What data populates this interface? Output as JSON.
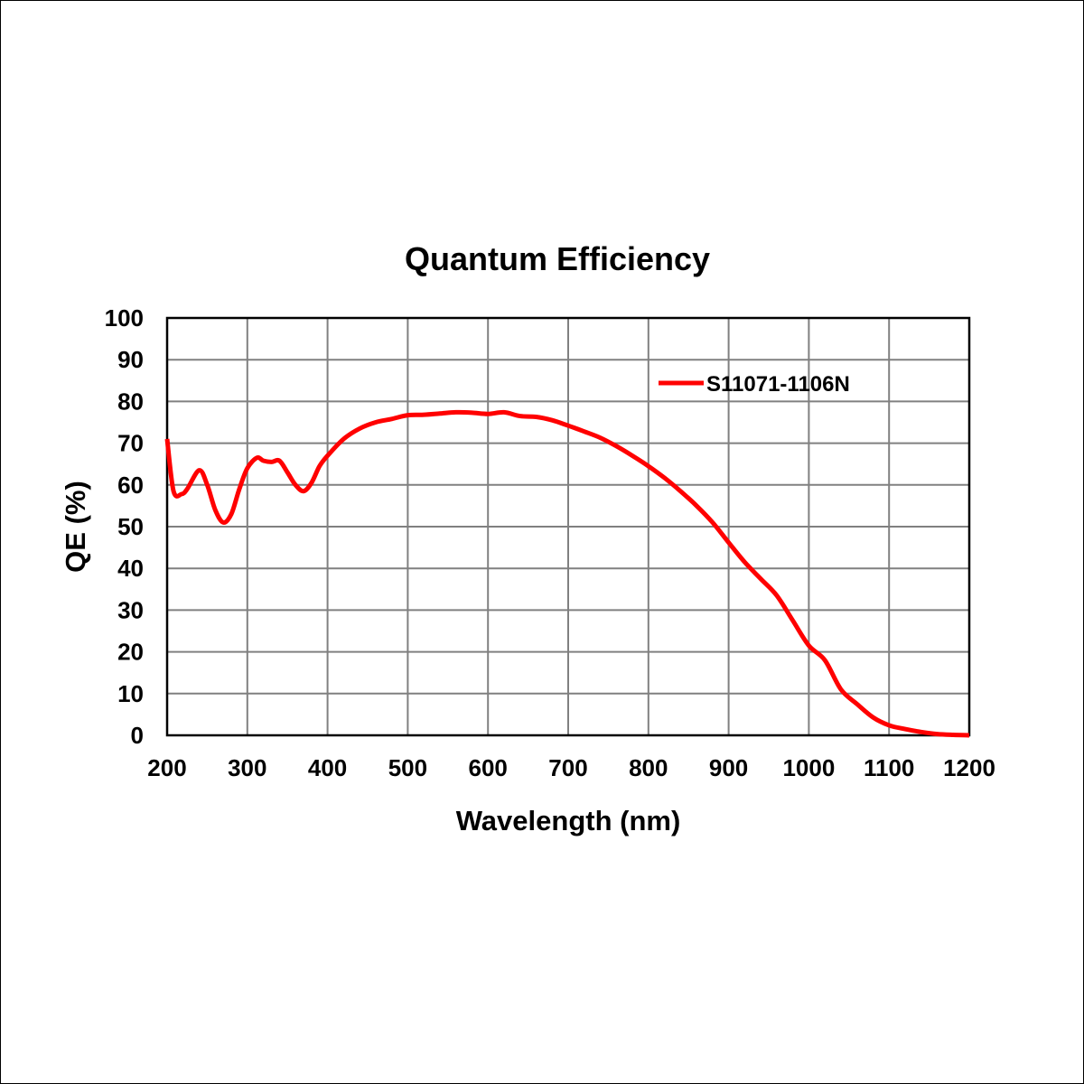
{
  "chart_data": {
    "type": "line",
    "title": "Quantum Efficiency",
    "xlabel": "Wavelength (nm)",
    "ylabel": "QE (%)",
    "xlim": [
      200,
      1200
    ],
    "ylim": [
      0,
      100
    ],
    "xticks": [
      200,
      300,
      400,
      500,
      600,
      700,
      800,
      900,
      1000,
      1100,
      1200
    ],
    "yticks": [
      0,
      10,
      20,
      30,
      40,
      50,
      60,
      70,
      80,
      90,
      100
    ],
    "grid": true,
    "legend_position": "top-right",
    "series": [
      {
        "name": "S11071-1106N",
        "color": "#ff0000",
        "x": [
          200,
          208,
          218,
          225,
          240,
          250,
          260,
          270,
          280,
          290,
          300,
          312,
          320,
          330,
          340,
          350,
          360,
          370,
          380,
          390,
          400,
          420,
          440,
          460,
          480,
          500,
          520,
          540,
          560,
          580,
          600,
          620,
          640,
          660,
          680,
          700,
          720,
          740,
          760,
          780,
          800,
          820,
          840,
          860,
          880,
          900,
          920,
          940,
          960,
          980,
          1000,
          1020,
          1040,
          1060,
          1080,
          1100,
          1120,
          1140,
          1160,
          1180,
          1200
        ],
        "y": [
          71,
          58.5,
          57.8,
          59,
          63.5,
          60,
          54,
          51,
          53,
          59,
          64,
          66.5,
          65.8,
          65.5,
          65.8,
          63,
          60,
          58.5,
          60.5,
          64.5,
          67,
          71,
          73.5,
          75,
          75.8,
          76.7,
          76.8,
          77.1,
          77.4,
          77.3,
          77,
          77.4,
          76.5,
          76.3,
          75.5,
          74.2,
          72.8,
          71.3,
          69.3,
          67,
          64.5,
          61.7,
          58.5,
          55,
          51,
          46.2,
          41.5,
          37.5,
          33.5,
          27.5,
          21.5,
          18,
          11,
          7.5,
          4.3,
          2.4,
          1.5,
          0.8,
          0.3,
          0.1,
          0
        ]
      }
    ]
  }
}
